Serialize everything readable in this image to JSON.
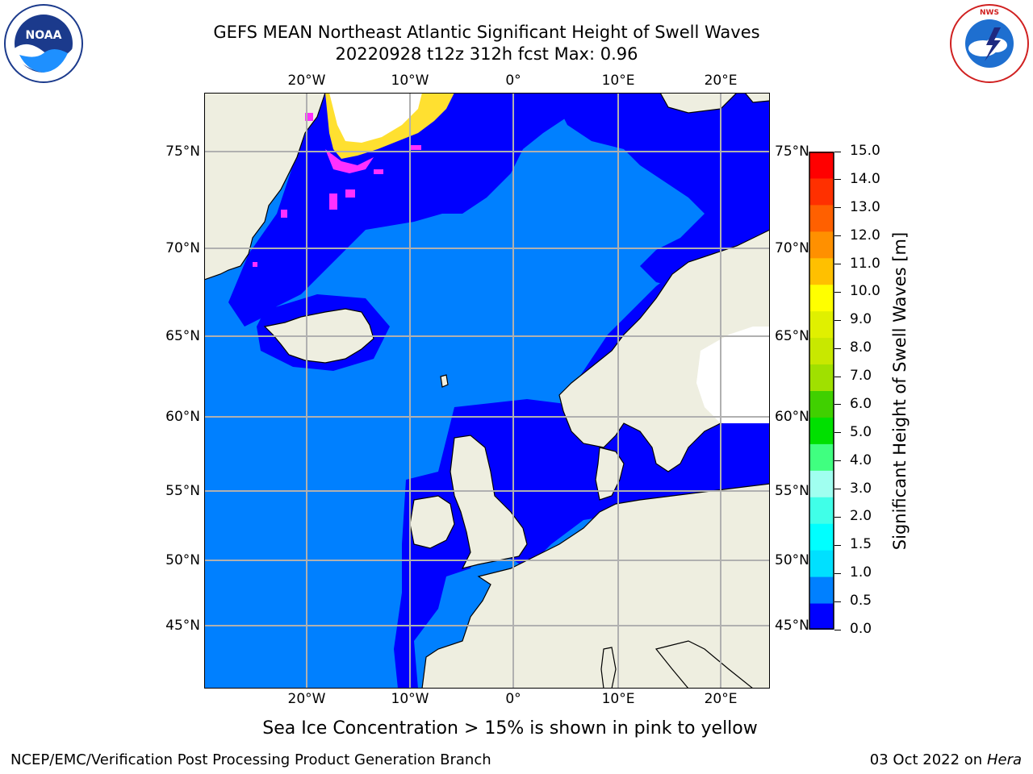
{
  "title": {
    "line1": "GEFS MEAN Northeast Atlantic Significant Height of Swell Waves",
    "line2": "20220928 t12z 312h fcst   Max: 0.96"
  },
  "logos": {
    "left": "NOAA",
    "left_ring_text": "NATIONAL OCEANIC AND ATMOSPHERIC ADMINISTRATION · U.S. DEPARTMENT OF COMMERCE",
    "right_ring_text": "NATIONAL WEATHER SERVICE"
  },
  "map": {
    "lon_ticks": [
      "20°W",
      "10°W",
      "0°",
      "10°E",
      "20°E"
    ],
    "lat_ticks": [
      "75°N",
      "70°N",
      "65°N",
      "60°N",
      "55°N",
      "50°N",
      "45°N"
    ],
    "colors": {
      "ocean_swell_0_0.5": "#0000ff",
      "ocean_swell_0.5_1.0": "#0080ff",
      "land": "#eeeee0",
      "gridline": "#b0b0b0",
      "sea_ice_high": "#ffffff",
      "sea_ice_mid": "#ffe030",
      "sea_ice_low": "#ff30ff"
    }
  },
  "colorbar": {
    "label": "Significant Height of Swell Waves [m]",
    "ticks": [
      "15.0",
      "14.0",
      "13.0",
      "12.0",
      "11.0",
      "10.0",
      "9.0",
      "8.0",
      "7.0",
      "6.0",
      "5.0",
      "4.0",
      "3.0",
      "2.0",
      "1.5",
      "1.0",
      "0.5",
      "0.0"
    ],
    "colors_bottom_to_top": [
      "#0000ff",
      "#0080ff",
      "#00e0ff",
      "#00ffff",
      "#40ffe8",
      "#a0fff0",
      "#40ff80",
      "#00e000",
      "#40d000",
      "#a0e000",
      "#c8e800",
      "#e0f000",
      "#ffff00",
      "#ffc000",
      "#ff9000",
      "#ff6000",
      "#ff3000",
      "#ff0000"
    ]
  },
  "caption": "Sea Ice Concentration > 15% is shown in pink to yellow",
  "footer": {
    "left": "NCEP/EMC/Verification Post Processing Product Generation Branch",
    "right_date": "03 Oct 2022 on ",
    "right_host": "Hera"
  }
}
